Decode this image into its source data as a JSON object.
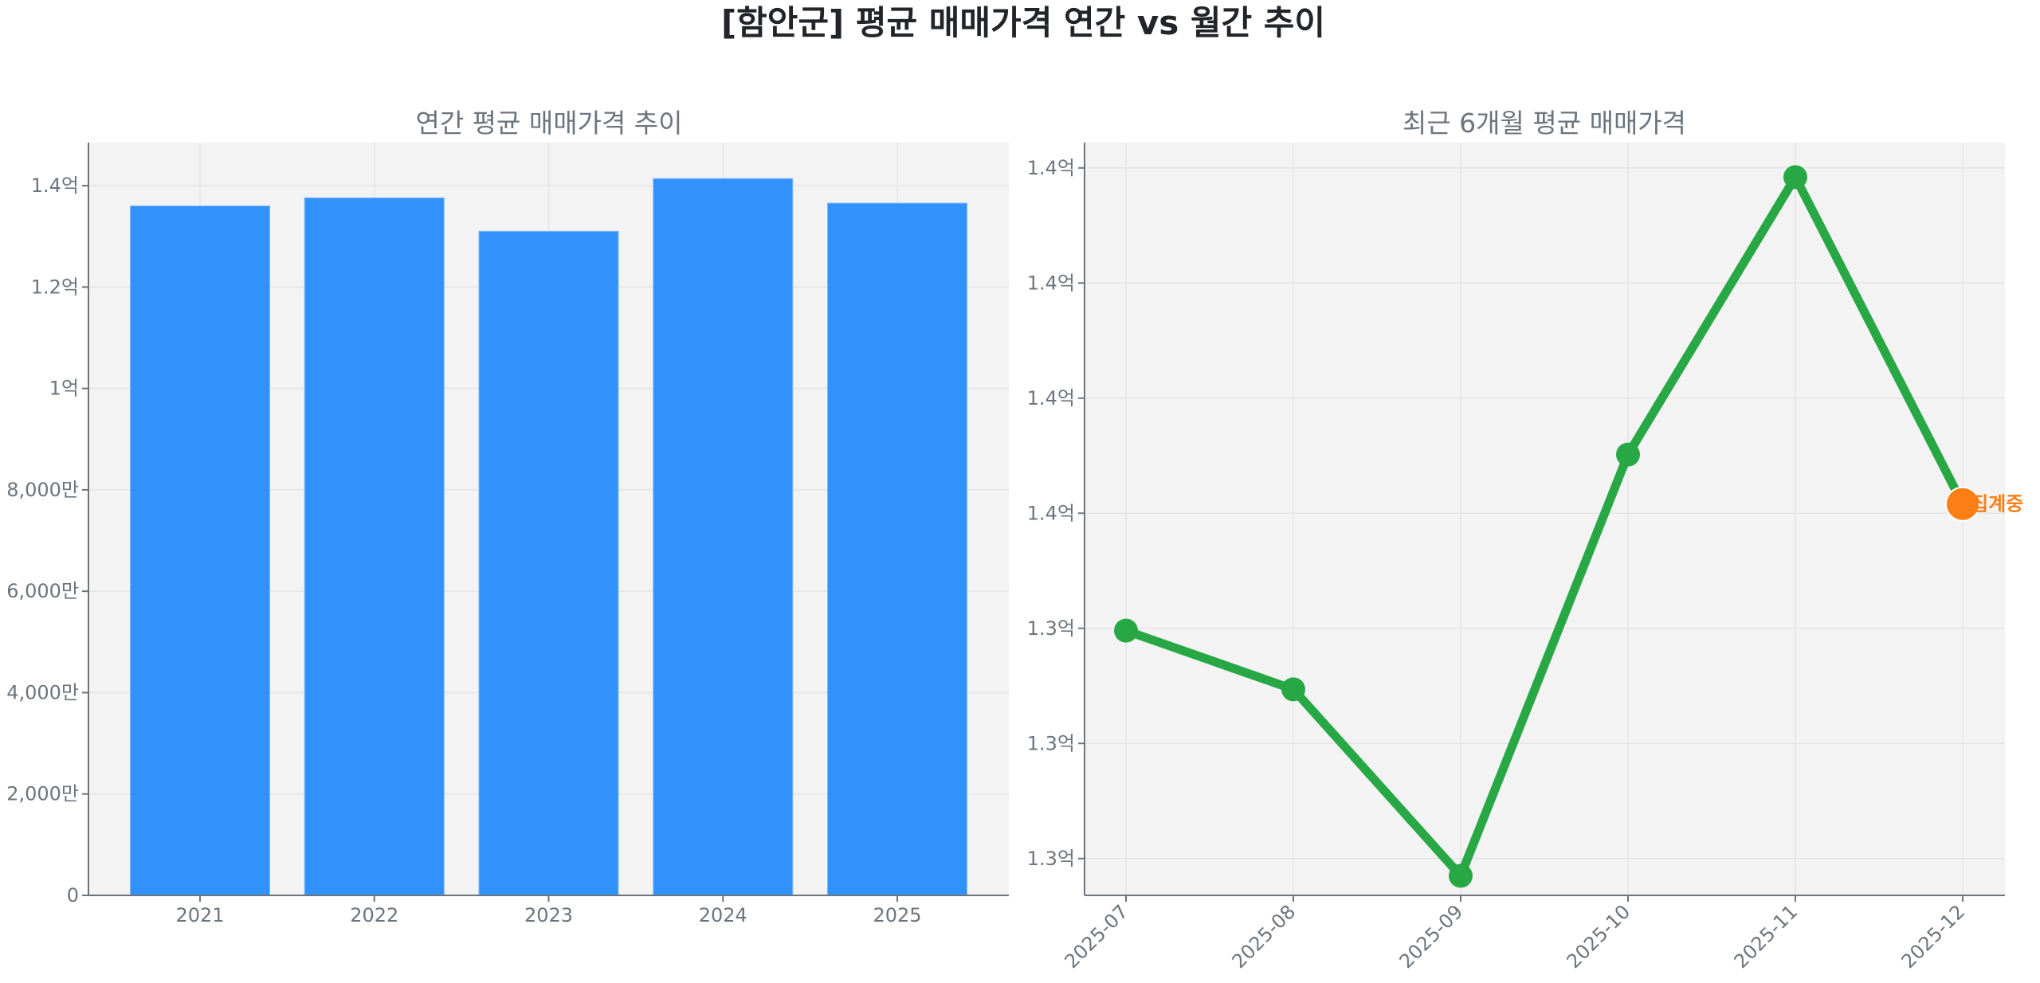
{
  "figure": {
    "suptitle": "[함안군] 평균 매매가격 연간 vs 월간 추이"
  },
  "chart_data": [
    {
      "type": "bar",
      "title": "연간 평균 매매가격 추이",
      "xlabel": "",
      "ylabel": "",
      "categories": [
        "2021",
        "2022",
        "2023",
        "2024",
        "2025"
      ],
      "values": [
        136000000,
        137600000,
        131000000,
        141400000,
        136550000
      ],
      "ylim": [
        0,
        148500000
      ],
      "yticks": [
        0,
        20000000,
        40000000,
        60000000,
        80000000,
        100000000,
        120000000,
        140000000
      ],
      "ytick_labels": [
        "0",
        "2,000만",
        "4,000만",
        "6,000만",
        "8,000만",
        "1억",
        "1.2억",
        "1.4억"
      ],
      "grid": true,
      "color": "#3192fb"
    },
    {
      "type": "line",
      "title": "최근 6개월 평균 매매가격",
      "xlabel": "",
      "ylabel": "",
      "categories": [
        "2025-07",
        "2025-08",
        "2025-09",
        "2025-10",
        "2025-11",
        "2025-12"
      ],
      "values": [
        133980000,
        133470000,
        131850000,
        135510000,
        137920000,
        135080000
      ],
      "ylim": [
        131680000,
        138220000
      ],
      "yticks": [
        132000000,
        133000000,
        134000000,
        135000000,
        136000000,
        137000000,
        138000000
      ],
      "ytick_labels": [
        "1.3억",
        "1.3억",
        "1.3억",
        "1.4억",
        "1.4억",
        "1.4억",
        "1.4억"
      ],
      "xtick_rotation": 45,
      "grid": true,
      "color": "#28a745",
      "last_point_color": "#fd7e14",
      "annotations": [
        {
          "x": "2025-12",
          "text": "집계중",
          "color": "#fd7e14"
        }
      ]
    }
  ]
}
